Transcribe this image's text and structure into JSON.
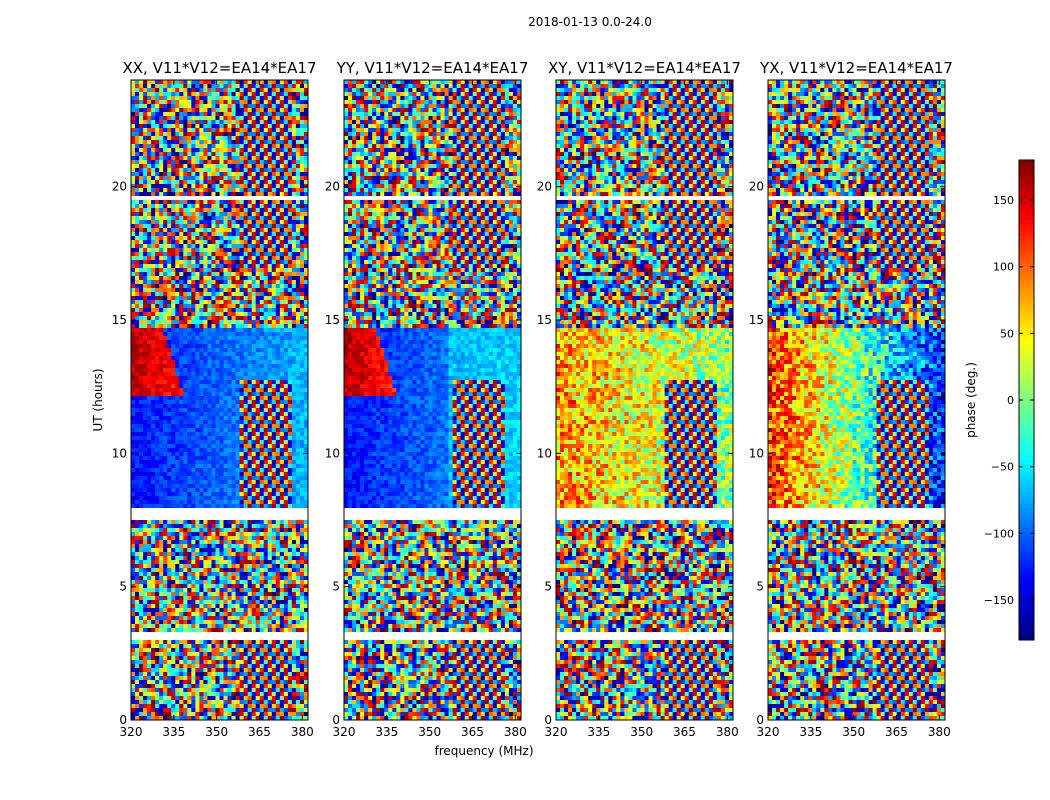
{
  "figure": {
    "suptitle": "2018-01-13 0.0-24.0",
    "xlabel": "frequency (MHz)",
    "ylabel": "UT (hours)"
  },
  "colorbar": {
    "label": "phase (deg.)",
    "range": [
      -180,
      180
    ],
    "ticks": [
      150,
      100,
      50,
      0,
      -50,
      -100,
      -150
    ],
    "tick_labels": [
      "150",
      "100",
      "50",
      "0",
      "−50",
      "−100",
      "−150"
    ],
    "colormap": "jet"
  },
  "chart_data": [
    {
      "type": "heatmap",
      "title": "XX, V11*V12=EA14*EA17",
      "xlim": [
        320,
        382
      ],
      "ylim": [
        0,
        24
      ],
      "x_ticks": [
        320,
        335,
        350,
        365,
        380
      ],
      "y_ticks": [
        0,
        5,
        10,
        15,
        20
      ],
      "x_tick_labels": [
        "320",
        "335",
        "350",
        "365",
        "380"
      ],
      "y_tick_labels": [
        "0",
        "5",
        "10",
        "15",
        "20"
      ],
      "value": "phase (deg.)"
    },
    {
      "type": "heatmap",
      "title": "YY, V11*V12=EA14*EA17",
      "xlim": [
        320,
        382
      ],
      "ylim": [
        0,
        24
      ],
      "x_ticks": [
        320,
        335,
        350,
        365,
        380
      ],
      "y_ticks": [
        0,
        5,
        10,
        15,
        20
      ],
      "x_tick_labels": [
        "320",
        "335",
        "350",
        "365",
        "380"
      ],
      "y_tick_labels": [
        "0",
        "5",
        "10",
        "15",
        "20"
      ],
      "value": "phase (deg.)"
    },
    {
      "type": "heatmap",
      "title": "XY, V11*V12=EA14*EA17",
      "xlim": [
        320,
        382
      ],
      "ylim": [
        0,
        24
      ],
      "x_ticks": [
        320,
        335,
        350,
        365,
        380
      ],
      "y_ticks": [
        0,
        5,
        10,
        15,
        20
      ],
      "x_tick_labels": [
        "320",
        "335",
        "350",
        "365",
        "380"
      ],
      "y_tick_labels": [
        "0",
        "5",
        "10",
        "15",
        "20"
      ],
      "value": "phase (deg.)"
    },
    {
      "type": "heatmap",
      "title": "YX, V11*V12=EA14*EA17",
      "xlim": [
        320,
        382
      ],
      "ylim": [
        0,
        24
      ],
      "x_ticks": [
        320,
        335,
        350,
        365,
        380
      ],
      "y_ticks": [
        0,
        5,
        10,
        15,
        20
      ],
      "x_tick_labels": [
        "320",
        "335",
        "350",
        "365",
        "380"
      ],
      "y_tick_labels": [
        "0",
        "5",
        "10",
        "15",
        "20"
      ],
      "value": "phase (deg.)"
    }
  ]
}
